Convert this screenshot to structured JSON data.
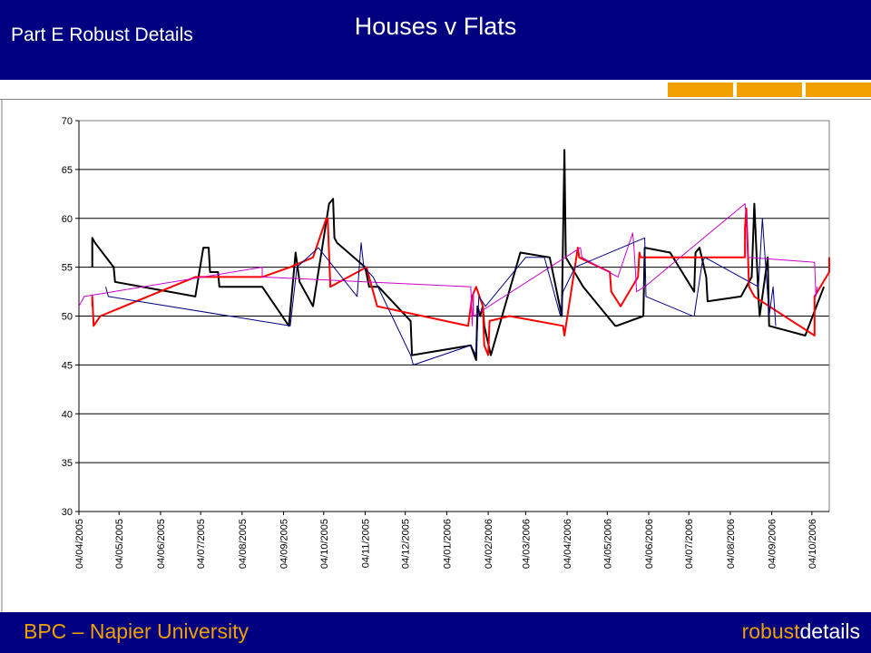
{
  "header": {
    "title": "Houses v Flats",
    "subtitle": "Part E Robust Details"
  },
  "footer": {
    "left": "BPC – Napier University",
    "brand_part1": "robust",
    "brand_part2": "details"
  },
  "colors": {
    "navy": "#000080",
    "accent": "#f0a000",
    "white": "#ffffff"
  },
  "chart_data": {
    "type": "line",
    "title": "",
    "xlabel": "",
    "ylabel": "",
    "ylim": [
      30,
      70
    ],
    "yticks": [
      30,
      35,
      40,
      45,
      50,
      55,
      60,
      65,
      70
    ],
    "xlim": [
      "2005-04-04",
      "2006-10-17"
    ],
    "xticks": [
      "04/04/2005",
      "04/05/2005",
      "04/06/2005",
      "04/07/2005",
      "04/08/2005",
      "04/09/2005",
      "04/10/2005",
      "04/11/2005",
      "04/12/2005",
      "04/01/2006",
      "04/02/2006",
      "04/03/2006",
      "04/04/2006",
      "04/05/2006",
      "04/06/2006",
      "04/07/2006",
      "04/08/2006",
      "04/09/2006",
      "04/10/2006"
    ],
    "grid": "horizontal",
    "legend": "none",
    "series": [
      {
        "color": "#000000",
        "width": 2,
        "x": [
          "2005-04-14",
          "2005-04-14",
          "2005-04-16",
          "2005-04-30",
          "2005-05-01",
          "2005-06-30",
          "2005-07-06",
          "2005-07-10",
          "2005-07-11",
          "2005-07-17",
          "2005-07-18",
          "2005-08-19",
          "2005-09-08",
          "2005-09-13",
          "2005-09-16",
          "2005-09-26",
          "2005-10-08",
          "2005-10-11",
          "2005-10-12",
          "2005-10-14",
          "2005-11-04",
          "2005-11-07",
          "2005-11-14",
          "2005-12-08",
          "2005-12-09",
          "2006-01-22",
          "2006-01-26",
          "2006-01-27",
          "2006-01-29",
          "2006-01-31",
          "2006-02-01",
          "2006-02-06",
          "2006-02-28",
          "2006-03-22",
          "2006-03-31",
          "2006-04-02",
          "2006-04-03",
          "2006-04-16",
          "2006-05-10",
          "2006-05-11",
          "2006-05-31",
          "2006-06-01",
          "2006-06-20",
          "2006-07-08",
          "2006-07-09",
          "2006-07-12",
          "2006-07-17",
          "2006-07-18",
          "2006-08-12",
          "2006-08-20",
          "2006-08-22",
          "2006-08-25",
          "2006-08-26",
          "2006-09-01",
          "2006-09-02",
          "2006-09-29",
          "2006-10-13"
        ],
        "y": [
          55,
          58,
          57.5,
          55,
          53.5,
          52,
          57,
          57,
          54.5,
          54.5,
          53,
          53,
          49,
          56.5,
          53.5,
          51,
          61.5,
          62,
          58,
          57.5,
          55,
          53,
          53,
          49.5,
          46,
          47,
          45.5,
          51,
          50,
          51,
          49,
          46,
          56.5,
          56,
          50,
          67,
          56,
          53,
          49,
          49,
          50,
          57,
          56.5,
          52.5,
          56.5,
          57,
          54,
          51.5,
          52,
          54,
          61.5,
          52,
          50,
          56,
          49,
          48,
          53
        ]
      },
      {
        "color": "#ff0000",
        "width": 2,
        "x": [
          "2005-04-14",
          "2005-04-14",
          "2005-04-15",
          "2005-04-20",
          "2005-06-30",
          "2005-08-19",
          "2005-09-09",
          "2005-09-26",
          "2005-10-06",
          "2005-10-07",
          "2005-10-09",
          "2005-11-05",
          "2005-11-13",
          "2006-01-20",
          "2006-01-23",
          "2006-01-26",
          "2006-01-31",
          "2006-02-01",
          "2006-02-04",
          "2006-02-05",
          "2006-02-20",
          "2006-04-01",
          "2006-04-02",
          "2006-04-12",
          "2006-04-13",
          "2006-05-06",
          "2006-05-07",
          "2006-05-14",
          "2006-05-27",
          "2006-05-28",
          "2006-05-29",
          "2006-07-01",
          "2006-08-15",
          "2006-08-15",
          "2006-08-16",
          "2006-08-18",
          "2006-08-22",
          "2006-09-02",
          "2006-10-06",
          "2006-10-06",
          "2006-10-17",
          "2006-10-17"
        ],
        "y": [
          51,
          52,
          49,
          50,
          54,
          54,
          55,
          56,
          60,
          60,
          53,
          55,
          51,
          49,
          52,
          53,
          51,
          47,
          46,
          49.5,
          50,
          49,
          48,
          57,
          56,
          54.5,
          52.5,
          51,
          54,
          56.5,
          56,
          56,
          56,
          59,
          61,
          53,
          52,
          51,
          48,
          52,
          54.5,
          56
        ]
      },
      {
        "color": "#cc00cc",
        "width": 1,
        "x": [
          "2005-04-04",
          "2005-04-08",
          "2005-08-19",
          "2005-08-19",
          "2006-01-22",
          "2006-01-23",
          "2006-01-24",
          "2006-01-24",
          "2006-04-14",
          "2006-04-15",
          "2006-05-12",
          "2006-05-23",
          "2006-05-24",
          "2006-05-26",
          "2006-06-01",
          "2006-08-15",
          "2006-08-16",
          "2006-08-17",
          "2006-10-06",
          "2006-10-07",
          "2006-10-08"
        ],
        "y": [
          51,
          52,
          55,
          54,
          53,
          49,
          52.5,
          50,
          57,
          56,
          54,
          58.5,
          57,
          52.5,
          53,
          61.5,
          60,
          56,
          55.5,
          52,
          53
        ]
      },
      {
        "color": "#000080",
        "width": 1,
        "x": [
          "2005-04-24",
          "2005-04-26",
          "2005-09-09",
          "2005-09-14",
          "2005-09-30",
          "2005-10-29",
          "2005-11-01",
          "2005-11-03",
          "2005-11-10",
          "2005-12-08",
          "2005-12-10",
          "2006-01-22",
          "2006-01-26",
          "2006-01-28",
          "2006-02-02",
          "2006-03-04",
          "2006-03-18",
          "2006-03-30",
          "2006-04-01",
          "2006-04-10",
          "2006-06-01",
          "2006-06-02",
          "2006-07-07",
          "2006-07-08",
          "2006-07-14",
          "2006-07-16",
          "2006-08-25",
          "2006-08-28",
          "2006-09-02",
          "2006-09-05",
          "2006-09-07"
        ],
        "y": [
          53,
          52,
          49,
          55,
          57,
          52,
          57.5,
          55,
          54,
          46,
          45,
          47,
          46,
          52,
          51,
          56,
          56,
          50,
          52.5,
          55,
          58,
          52,
          50,
          50,
          55.5,
          56,
          53,
          60,
          50,
          53,
          49
        ]
      }
    ]
  }
}
